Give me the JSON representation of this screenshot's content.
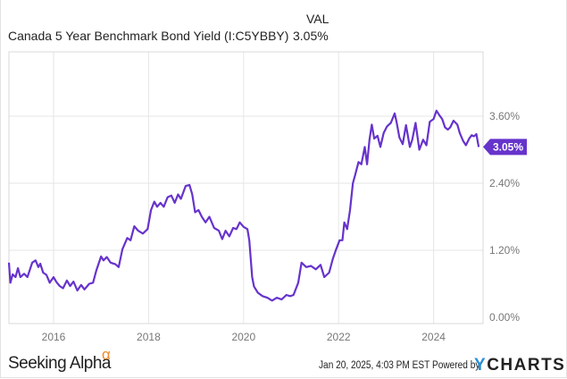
{
  "header": {
    "title": "Canada 5 Year Benchmark Bond Yield (I:C5YBBY)",
    "value_label": "VAL",
    "value": "3.05%"
  },
  "footer": {
    "brand": "Seeking Alpha",
    "brand_mark": "α",
    "timestamp": "Jan 20, 2025, 4:03 PM EST",
    "powered_by": "Powered by",
    "ycharts_y": "Y",
    "ycharts_rest": "CHARTS"
  },
  "colors": {
    "line": "#6633cc",
    "badge": "#6633cc",
    "grid": "#e6e6e6",
    "axis_text": "#777777",
    "seeking_alpha_mark": "#f08a24",
    "ycharts_y": "#2a8fd6"
  },
  "chart_data": {
    "type": "line",
    "title": "Canada 5 Year Benchmark Bond Yield (I:C5YBBY)",
    "xlabel": "",
    "ylabel": "",
    "x_ticks": [
      "2016",
      "2018",
      "2020",
      "2022",
      "2024"
    ],
    "y_ticks": [
      "0.00%",
      "1.20%",
      "2.40%",
      "3.60%"
    ],
    "ylim": [
      0,
      4.6
    ],
    "xlim": [
      2015.06,
      2025.05
    ],
    "grid": true,
    "last_value_label": "3.05%",
    "series": [
      {
        "name": "Canada 5 Year Benchmark Bond Yield",
        "points": [
          [
            2015.06,
            0.98
          ],
          [
            2015.09,
            0.62
          ],
          [
            2015.14,
            0.77
          ],
          [
            2015.2,
            0.72
          ],
          [
            2015.25,
            0.88
          ],
          [
            2015.3,
            0.72
          ],
          [
            2015.38,
            0.78
          ],
          [
            2015.45,
            0.72
          ],
          [
            2015.55,
            0.98
          ],
          [
            2015.62,
            1.02
          ],
          [
            2015.68,
            0.9
          ],
          [
            2015.72,
            0.96
          ],
          [
            2015.78,
            0.8
          ],
          [
            2015.85,
            0.76
          ],
          [
            2015.92,
            0.62
          ],
          [
            2016.0,
            0.72
          ],
          [
            2016.06,
            0.63
          ],
          [
            2016.13,
            0.56
          ],
          [
            2016.2,
            0.52
          ],
          [
            2016.28,
            0.66
          ],
          [
            2016.35,
            0.56
          ],
          [
            2016.42,
            0.64
          ],
          [
            2016.5,
            0.48
          ],
          [
            2016.58,
            0.58
          ],
          [
            2016.65,
            0.5
          ],
          [
            2016.75,
            0.6
          ],
          [
            2016.83,
            0.62
          ],
          [
            2016.9,
            0.84
          ],
          [
            2017.0,
            1.09
          ],
          [
            2017.05,
            1.02
          ],
          [
            2017.12,
            1.08
          ],
          [
            2017.2,
            0.98
          ],
          [
            2017.3,
            0.95
          ],
          [
            2017.37,
            0.9
          ],
          [
            2017.45,
            1.22
          ],
          [
            2017.55,
            1.42
          ],
          [
            2017.62,
            1.38
          ],
          [
            2017.7,
            1.63
          ],
          [
            2017.78,
            1.55
          ],
          [
            2017.88,
            1.5
          ],
          [
            2017.98,
            1.58
          ],
          [
            2018.05,
            1.92
          ],
          [
            2018.12,
            2.07
          ],
          [
            2018.18,
            1.98
          ],
          [
            2018.25,
            2.05
          ],
          [
            2018.32,
            1.98
          ],
          [
            2018.4,
            2.15
          ],
          [
            2018.48,
            2.18
          ],
          [
            2018.55,
            2.05
          ],
          [
            2018.62,
            2.2
          ],
          [
            2018.68,
            2.12
          ],
          [
            2018.78,
            2.35
          ],
          [
            2018.86,
            2.37
          ],
          [
            2018.92,
            2.2
          ],
          [
            2018.98,
            1.88
          ],
          [
            2019.05,
            1.92
          ],
          [
            2019.12,
            1.8
          ],
          [
            2019.2,
            1.7
          ],
          [
            2019.28,
            1.8
          ],
          [
            2019.38,
            1.6
          ],
          [
            2019.48,
            1.55
          ],
          [
            2019.55,
            1.4
          ],
          [
            2019.62,
            1.55
          ],
          [
            2019.7,
            1.45
          ],
          [
            2019.78,
            1.6
          ],
          [
            2019.85,
            1.58
          ],
          [
            2019.92,
            1.7
          ],
          [
            2020.0,
            1.62
          ],
          [
            2020.08,
            1.58
          ],
          [
            2020.12,
            1.38
          ],
          [
            2020.18,
            0.72
          ],
          [
            2020.22,
            0.55
          ],
          [
            2020.3,
            0.44
          ],
          [
            2020.4,
            0.38
          ],
          [
            2020.5,
            0.35
          ],
          [
            2020.6,
            0.3
          ],
          [
            2020.7,
            0.35
          ],
          [
            2020.8,
            0.32
          ],
          [
            2020.9,
            0.4
          ],
          [
            2020.98,
            0.38
          ],
          [
            2021.05,
            0.4
          ],
          [
            2021.15,
            0.62
          ],
          [
            2021.22,
            0.98
          ],
          [
            2021.32,
            0.9
          ],
          [
            2021.42,
            0.92
          ],
          [
            2021.52,
            0.86
          ],
          [
            2021.62,
            0.94
          ],
          [
            2021.7,
            0.72
          ],
          [
            2021.8,
            0.8
          ],
          [
            2021.88,
            1.05
          ],
          [
            2021.95,
            1.22
          ],
          [
            2022.02,
            1.38
          ],
          [
            2022.08,
            1.38
          ],
          [
            2022.12,
            1.7
          ],
          [
            2022.18,
            1.58
          ],
          [
            2022.24,
            1.92
          ],
          [
            2022.3,
            2.4
          ],
          [
            2022.35,
            2.55
          ],
          [
            2022.42,
            2.78
          ],
          [
            2022.48,
            2.74
          ],
          [
            2022.55,
            3.05
          ],
          [
            2022.6,
            2.74
          ],
          [
            2022.65,
            3.18
          ],
          [
            2022.7,
            3.45
          ],
          [
            2022.75,
            3.2
          ],
          [
            2022.82,
            3.25
          ],
          [
            2022.88,
            3.05
          ],
          [
            2022.95,
            3.3
          ],
          [
            2023.02,
            3.42
          ],
          [
            2023.1,
            3.48
          ],
          [
            2023.18,
            3.65
          ],
          [
            2023.22,
            3.5
          ],
          [
            2023.28,
            3.22
          ],
          [
            2023.35,
            3.1
          ],
          [
            2023.42,
            3.44
          ],
          [
            2023.5,
            3.05
          ],
          [
            2023.55,
            3.18
          ],
          [
            2023.62,
            3.48
          ],
          [
            2023.7,
            3.0
          ],
          [
            2023.78,
            3.18
          ],
          [
            2023.85,
            3.08
          ],
          [
            2023.92,
            3.5
          ],
          [
            2024.0,
            3.55
          ],
          [
            2024.06,
            3.7
          ],
          [
            2024.12,
            3.62
          ],
          [
            2024.18,
            3.55
          ],
          [
            2024.24,
            3.4
          ],
          [
            2024.3,
            3.36
          ],
          [
            2024.35,
            3.4
          ],
          [
            2024.42,
            3.52
          ],
          [
            2024.5,
            3.45
          ],
          [
            2024.55,
            3.3
          ],
          [
            2024.62,
            3.16
          ],
          [
            2024.68,
            3.08
          ],
          [
            2024.75,
            3.2
          ],
          [
            2024.8,
            3.26
          ],
          [
            2024.85,
            3.24
          ],
          [
            2024.9,
            3.28
          ],
          [
            2024.95,
            3.05
          ]
        ]
      }
    ]
  }
}
